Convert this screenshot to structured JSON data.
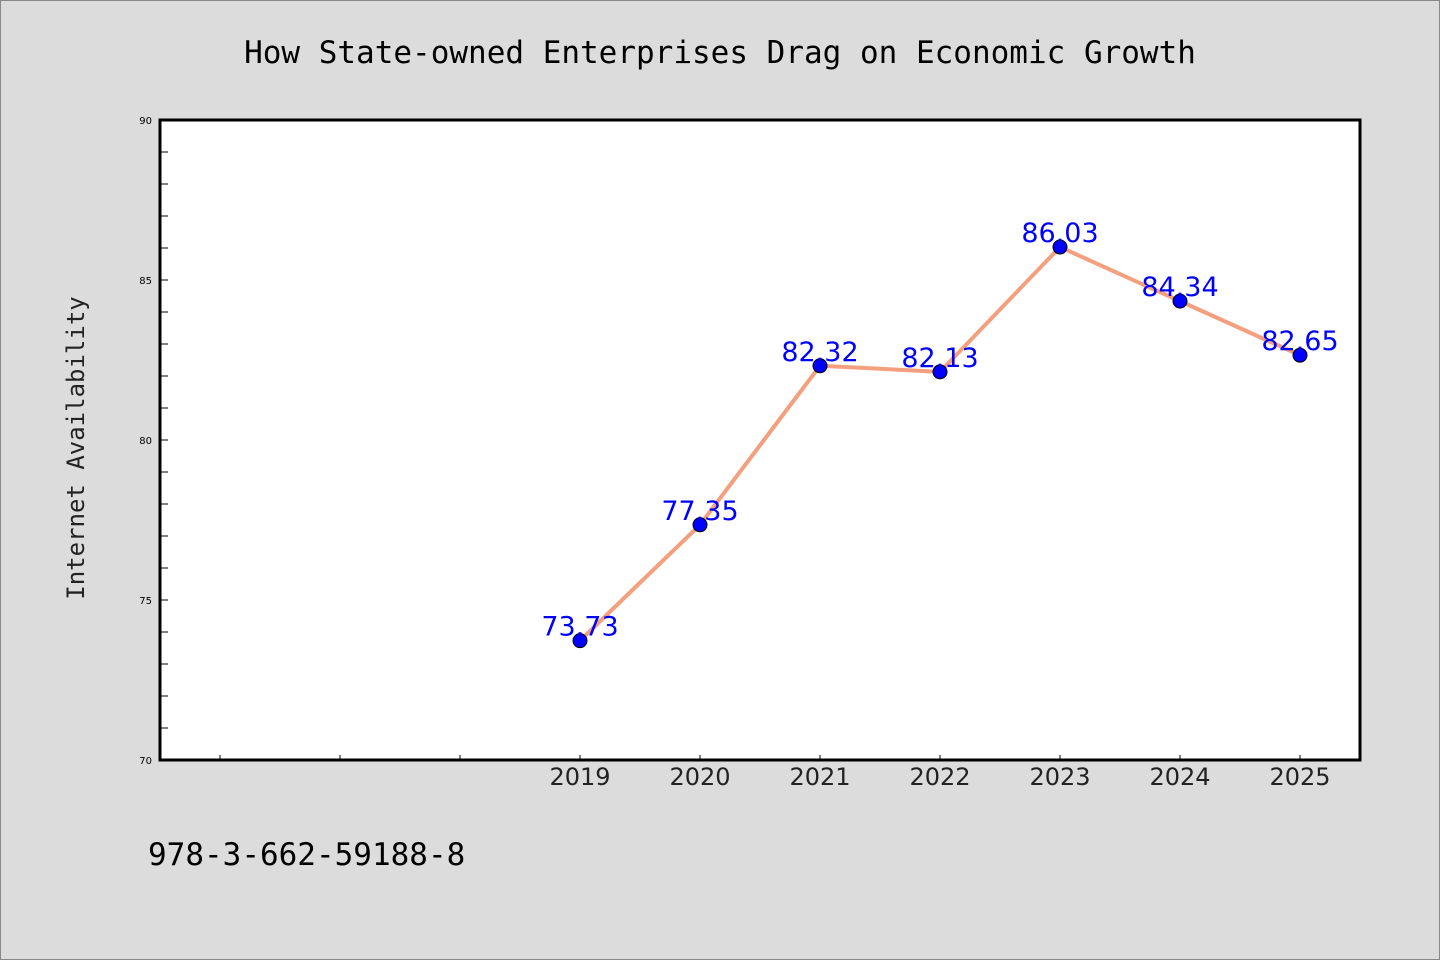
{
  "chart_data": {
    "type": "line",
    "title": "How State-owned Enterprises Drag on Economic Growth",
    "xlabel": "",
    "ylabel": "Internet Availability",
    "x": [
      "2019",
      "2020",
      "2021",
      "2022",
      "2023",
      "2024",
      "2025"
    ],
    "y": [
      73.73,
      77.35,
      82.32,
      82.13,
      86.03,
      84.34,
      82.65
    ],
    "data_labels": [
      "73.73",
      "77.35",
      "82.32",
      "82.13",
      "86.03",
      "84.34",
      "82.65"
    ],
    "ylim": [
      70,
      90
    ],
    "yticks": [
      "70",
      "75",
      "80",
      "85",
      "90"
    ],
    "grid": false,
    "legend": "none",
    "colors": {
      "line": "#f4a07e",
      "marker": "#0000ff",
      "data_label": "#0000ff",
      "plot_background": "#ffffff",
      "figure_background": "#dcdcdc"
    }
  },
  "footer": {
    "isbn": "978-3-662-59188-8"
  }
}
